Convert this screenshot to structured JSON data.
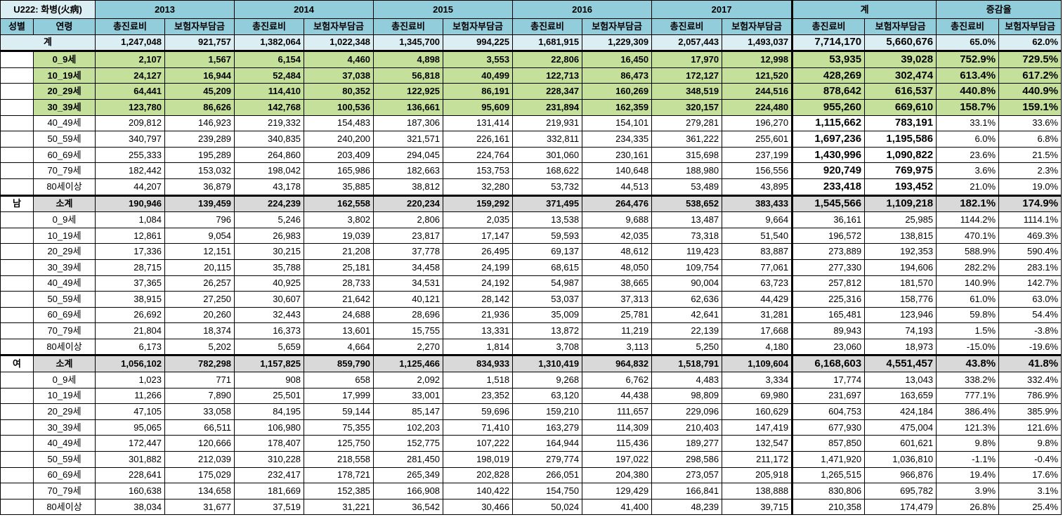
{
  "title": "U222: 화병(火病)",
  "years": [
    "2013",
    "2014",
    "2015",
    "2016",
    "2017",
    "계",
    "증감율"
  ],
  "subheaders": {
    "sex": "성별",
    "age": "연령",
    "total_cost": "총진료비",
    "insurer": "보험자부담금"
  },
  "colors": {
    "header": "#92cddc",
    "total_row": "#daeef3",
    "green_rows": "#c4e09a",
    "subtotal": "#d9d9d9"
  },
  "total_row": {
    "label": "계",
    "cells": [
      "1,247,048",
      "921,757",
      "1,382,064",
      "1,022,348",
      "1,345,700",
      "994,225",
      "1,681,915",
      "1,229,309",
      "2,057,443",
      "1,493,037",
      "7,714,170",
      "5,660,676",
      "65.0%",
      "62.0%"
    ]
  },
  "rows": [
    {
      "sex": "",
      "age": "0_9세",
      "style": "green",
      "cells": [
        "2,107",
        "1,567",
        "6,154",
        "4,460",
        "4,898",
        "3,553",
        "22,806",
        "16,450",
        "17,970",
        "12,998",
        "53,935",
        "39,028",
        "752.9%",
        "729.5%"
      ]
    },
    {
      "sex": "",
      "age": "10_19세",
      "style": "green",
      "cells": [
        "24,127",
        "16,944",
        "52,484",
        "37,038",
        "56,818",
        "40,499",
        "122,713",
        "86,473",
        "172,127",
        "121,520",
        "428,269",
        "302,474",
        "613.4%",
        "617.2%"
      ]
    },
    {
      "sex": "",
      "age": "20_29세",
      "style": "green",
      "cells": [
        "64,441",
        "45,209",
        "114,410",
        "80,352",
        "122,925",
        "86,191",
        "228,347",
        "160,269",
        "348,519",
        "244,516",
        "878,642",
        "616,537",
        "440.8%",
        "440.9%"
      ]
    },
    {
      "sex": "",
      "age": "30_39세",
      "style": "green",
      "cells": [
        "123,780",
        "86,626",
        "142,768",
        "100,536",
        "136,661",
        "95,609",
        "231,894",
        "162,359",
        "320,157",
        "224,480",
        "955,260",
        "669,610",
        "158.7%",
        "159.1%"
      ]
    },
    {
      "sex": "",
      "age": "40_49세",
      "style": "plain",
      "cells": [
        "209,812",
        "146,923",
        "219,332",
        "154,483",
        "187,306",
        "131,414",
        "219,931",
        "154,101",
        "279,281",
        "196,270",
        "1,115,662",
        "783,191",
        "33.1%",
        "33.6%"
      ]
    },
    {
      "sex": "",
      "age": "50_59세",
      "style": "plain",
      "cells": [
        "340,797",
        "239,289",
        "340,835",
        "240,200",
        "321,571",
        "226,161",
        "332,811",
        "234,335",
        "361,222",
        "255,601",
        "1,697,236",
        "1,195,586",
        "6.0%",
        "6.8%"
      ]
    },
    {
      "sex": "",
      "age": "60_69세",
      "style": "plain",
      "cells": [
        "255,333",
        "195,289",
        "264,860",
        "203,409",
        "294,045",
        "224,764",
        "301,060",
        "230,161",
        "315,698",
        "237,199",
        "1,430,996",
        "1,090,822",
        "23.6%",
        "21.5%"
      ]
    },
    {
      "sex": "",
      "age": "70_79세",
      "style": "plain",
      "cells": [
        "182,442",
        "153,032",
        "198,042",
        "165,986",
        "182,663",
        "153,753",
        "168,622",
        "140,648",
        "188,980",
        "156,556",
        "920,749",
        "769,975",
        "3.6%",
        "2.3%"
      ]
    },
    {
      "sex": "",
      "age": "80세이상",
      "style": "plain",
      "cells": [
        "44,207",
        "36,879",
        "43,178",
        "35,885",
        "38,812",
        "32,280",
        "53,732",
        "44,513",
        "53,489",
        "43,895",
        "233,418",
        "193,452",
        "21.0%",
        "19.0%"
      ]
    },
    {
      "sex": "남",
      "age": "소계",
      "style": "sub",
      "cells": [
        "190,946",
        "139,459",
        "224,239",
        "162,558",
        "220,234",
        "159,292",
        "371,495",
        "264,476",
        "538,652",
        "383,433",
        "1,545,566",
        "1,109,218",
        "182.1%",
        "174.9%"
      ]
    },
    {
      "sex": "",
      "age": "0_9세",
      "style": "plain",
      "cells": [
        "1,084",
        "796",
        "5,246",
        "3,802",
        "2,806",
        "2,035",
        "13,538",
        "9,688",
        "13,487",
        "9,664",
        "36,161",
        "25,985",
        "1144.2%",
        "1114.1%"
      ]
    },
    {
      "sex": "",
      "age": "10_19세",
      "style": "plain",
      "cells": [
        "12,861",
        "9,054",
        "26,983",
        "19,039",
        "23,817",
        "17,147",
        "59,593",
        "42,035",
        "73,318",
        "51,540",
        "196,572",
        "138,815",
        "470.1%",
        "469.3%"
      ]
    },
    {
      "sex": "",
      "age": "20_29세",
      "style": "plain",
      "cells": [
        "17,336",
        "12,151",
        "30,215",
        "21,208",
        "37,778",
        "26,495",
        "69,137",
        "48,612",
        "119,423",
        "83,887",
        "273,889",
        "192,353",
        "588.9%",
        "590.4%"
      ]
    },
    {
      "sex": "",
      "age": "30_39세",
      "style": "plain",
      "cells": [
        "28,715",
        "20,115",
        "35,788",
        "25,181",
        "34,458",
        "24,199",
        "68,615",
        "48,050",
        "109,754",
        "77,061",
        "277,330",
        "194,606",
        "282.2%",
        "283.1%"
      ]
    },
    {
      "sex": "",
      "age": "40_49세",
      "style": "plain",
      "cells": [
        "37,365",
        "26,257",
        "40,925",
        "28,733",
        "34,531",
        "24,192",
        "54,987",
        "38,665",
        "90,004",
        "63,723",
        "257,812",
        "181,570",
        "140.9%",
        "142.7%"
      ]
    },
    {
      "sex": "",
      "age": "50_59세",
      "style": "plain",
      "cells": [
        "38,915",
        "27,250",
        "30,607",
        "21,642",
        "40,121",
        "28,142",
        "53,037",
        "37,313",
        "62,636",
        "44,429",
        "225,316",
        "158,776",
        "61.0%",
        "63.0%"
      ]
    },
    {
      "sex": "",
      "age": "60_69세",
      "style": "plain",
      "cells": [
        "26,692",
        "20,260",
        "32,443",
        "24,688",
        "28,696",
        "21,936",
        "35,009",
        "25,781",
        "42,641",
        "31,281",
        "165,481",
        "123,946",
        "59.8%",
        "54.4%"
      ]
    },
    {
      "sex": "",
      "age": "70_79세",
      "style": "plain",
      "cells": [
        "21,804",
        "18,374",
        "16,373",
        "13,601",
        "15,755",
        "13,331",
        "13,872",
        "11,219",
        "22,139",
        "17,668",
        "89,943",
        "74,193",
        "1.5%",
        "-3.8%"
      ]
    },
    {
      "sex": "",
      "age": "80세이상",
      "style": "plain",
      "cells": [
        "6,173",
        "5,202",
        "5,659",
        "4,664",
        "2,270",
        "1,814",
        "3,708",
        "3,113",
        "5,250",
        "4,180",
        "23,060",
        "18,973",
        "-15.0%",
        "-19.6%"
      ]
    },
    {
      "sex": "여",
      "age": "소계",
      "style": "sub",
      "cells": [
        "1,056,102",
        "782,298",
        "1,157,825",
        "859,790",
        "1,125,466",
        "834,933",
        "1,310,419",
        "964,832",
        "1,518,791",
        "1,109,604",
        "6,168,603",
        "4,551,457",
        "43.8%",
        "41.8%"
      ]
    },
    {
      "sex": "",
      "age": "0_9세",
      "style": "plain",
      "cells": [
        "1,023",
        "771",
        "908",
        "658",
        "2,092",
        "1,518",
        "9,268",
        "6,762",
        "4,483",
        "3,334",
        "17,774",
        "13,043",
        "338.2%",
        "332.4%"
      ]
    },
    {
      "sex": "",
      "age": "10_19세",
      "style": "plain",
      "cells": [
        "11,266",
        "7,890",
        "25,501",
        "17,999",
        "33,001",
        "23,352",
        "63,120",
        "44,438",
        "98,809",
        "69,980",
        "231,697",
        "163,659",
        "777.1%",
        "786.9%"
      ]
    },
    {
      "sex": "",
      "age": "20_29세",
      "style": "plain",
      "cells": [
        "47,105",
        "33,058",
        "84,195",
        "59,144",
        "85,147",
        "59,696",
        "159,210",
        "111,657",
        "229,096",
        "160,629",
        "604,753",
        "424,184",
        "386.4%",
        "385.9%"
      ]
    },
    {
      "sex": "",
      "age": "30_39세",
      "style": "plain",
      "cells": [
        "95,065",
        "66,511",
        "106,980",
        "75,355",
        "102,203",
        "71,410",
        "163,279",
        "114,309",
        "210,403",
        "147,419",
        "677,930",
        "475,004",
        "121.3%",
        "121.6%"
      ]
    },
    {
      "sex": "",
      "age": "40_49세",
      "style": "plain",
      "cells": [
        "172,447",
        "120,666",
        "178,407",
        "125,750",
        "152,775",
        "107,222",
        "164,944",
        "115,436",
        "189,277",
        "132,547",
        "857,850",
        "601,621",
        "9.8%",
        "9.8%"
      ]
    },
    {
      "sex": "",
      "age": "50_59세",
      "style": "plain",
      "cells": [
        "301,882",
        "212,039",
        "310,228",
        "218,558",
        "281,450",
        "198,019",
        "279,774",
        "197,022",
        "298,586",
        "211,172",
        "1,471,920",
        "1,036,810",
        "-1.1%",
        "-0.4%"
      ]
    },
    {
      "sex": "",
      "age": "60_69세",
      "style": "plain",
      "cells": [
        "228,641",
        "175,029",
        "232,417",
        "178,721",
        "265,349",
        "202,828",
        "266,051",
        "204,380",
        "273,057",
        "205,918",
        "1,265,515",
        "966,876",
        "19.4%",
        "17.6%"
      ]
    },
    {
      "sex": "",
      "age": "70_79세",
      "style": "plain",
      "cells": [
        "160,638",
        "134,658",
        "181,669",
        "152,385",
        "166,908",
        "140,422",
        "154,750",
        "129,429",
        "166,841",
        "138,888",
        "830,806",
        "695,782",
        "3.9%",
        "3.1%"
      ]
    },
    {
      "sex": "",
      "age": "80세이상",
      "style": "plain",
      "cells": [
        "38,034",
        "31,677",
        "37,519",
        "31,221",
        "36,542",
        "30,466",
        "50,024",
        "41,400",
        "48,239",
        "39,715",
        "210,358",
        "174,479",
        "26.8%",
        "25.4%"
      ]
    }
  ]
}
